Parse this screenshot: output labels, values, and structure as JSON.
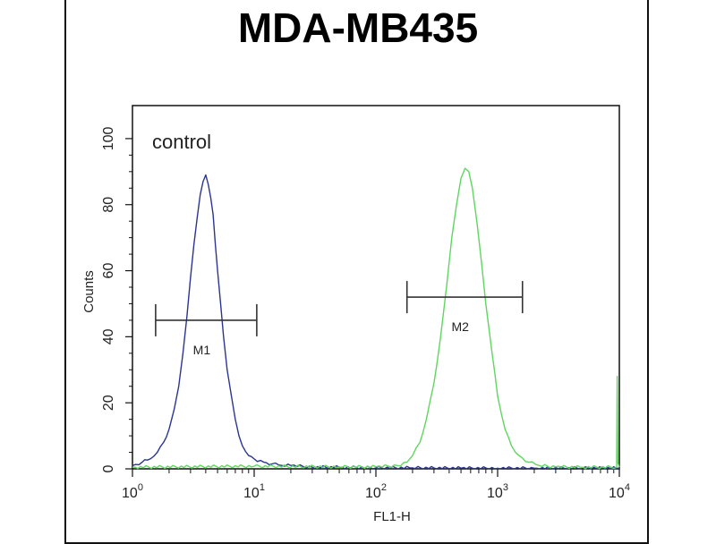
{
  "chart_data": {
    "type": "line",
    "title": "MDA-MB435",
    "xlabel": "FL1-H",
    "ylabel": "Counts",
    "xscale": "log",
    "xlim": [
      1,
      10000
    ],
    "ylim": [
      0,
      110
    ],
    "x_ticks": [
      {
        "value": 1,
        "base": "10",
        "exp": "0"
      },
      {
        "value": 10,
        "base": "10",
        "exp": "1"
      },
      {
        "value": 100,
        "base": "10",
        "exp": "2"
      },
      {
        "value": 1000,
        "base": "10",
        "exp": "3"
      },
      {
        "value": 10000,
        "base": "10",
        "exp": "4"
      }
    ],
    "y_ticks": [
      0,
      20,
      40,
      60,
      80,
      100
    ],
    "annotation": "control",
    "colors": {
      "control": "#2a3590",
      "sample": "#5fd65f"
    },
    "series": [
      {
        "key": "control",
        "color": "#2a3590",
        "x": [
          1,
          1.2,
          1.4,
          1.6,
          1.8,
          2.0,
          2.2,
          2.4,
          2.6,
          2.8,
          3.0,
          3.2,
          3.4,
          3.6,
          3.8,
          4.0,
          4.2,
          4.4,
          4.6,
          4.8,
          5.0,
          5.3,
          5.6,
          6.0,
          6.5,
          7.0,
          7.5,
          8.0,
          9.0,
          10,
          12,
          14,
          17,
          20,
          30,
          50,
          100,
          200,
          500,
          1000,
          2000,
          5000,
          10000
        ],
        "y": [
          1,
          2,
          3,
          5,
          8,
          12,
          18,
          25,
          35,
          46,
          58,
          68,
          76,
          83,
          87,
          89,
          86,
          82,
          77,
          68,
          60,
          50,
          40,
          30,
          22,
          15,
          10,
          7,
          4,
          3,
          2,
          1.5,
          1,
          1,
          0.5,
          0.5,
          0.3,
          0.3,
          0.2,
          0.2,
          0.2,
          0.2,
          0.2
        ]
      },
      {
        "key": "sample",
        "color": "#5fd65f",
        "x": [
          1,
          10,
          50,
          100,
          150,
          180,
          200,
          230,
          260,
          300,
          340,
          380,
          420,
          460,
          500,
          540,
          580,
          620,
          680,
          740,
          800,
          900,
          1000,
          1150,
          1300,
          1500,
          1800,
          2200,
          3000,
          5000,
          9500,
          9600,
          9700,
          10000
        ],
        "y": [
          0.5,
          0.8,
          0.6,
          0.6,
          1,
          2,
          4,
          8,
          15,
          26,
          40,
          55,
          70,
          80,
          88,
          91,
          90,
          85,
          74,
          62,
          50,
          35,
          22,
          12,
          7,
          4,
          2,
          1,
          0.6,
          0.5,
          0.5,
          28,
          2,
          0.5
        ]
      }
    ],
    "markers": [
      {
        "label": "M1",
        "x_start": 1.55,
        "x_end": 10.5,
        "y": 45
      },
      {
        "label": "M2",
        "x_start": 180,
        "x_end": 1600,
        "y": 52
      }
    ]
  }
}
